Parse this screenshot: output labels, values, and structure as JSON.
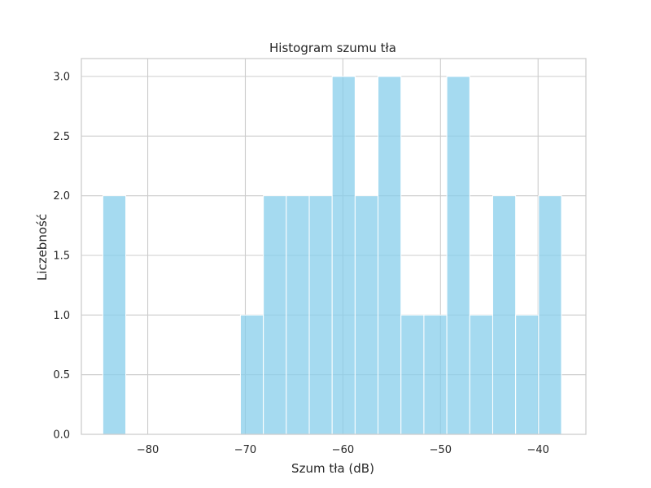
{
  "chart_data": {
    "type": "bar",
    "subtype": "histogram",
    "title": "Histogram szumu tła",
    "xlabel": "Szum tła (dB)",
    "ylabel": "Liczebność",
    "bar_color": "#87ceeb",
    "grid": true,
    "xlim": [
      -86.8,
      -35.1
    ],
    "ylim": [
      0,
      3.15
    ],
    "x_ticks": [
      -80,
      -70,
      -60,
      -50,
      -40
    ],
    "x_tick_labels": [
      "−80",
      "−70",
      "−60",
      "−50",
      "−40"
    ],
    "y_ticks": [
      0,
      0.5,
      1,
      1.5,
      2,
      2.5,
      3
    ],
    "y_tick_labels": [
      "0.0",
      "0.5",
      "1.0",
      "1.5",
      "2.0",
      "2.5",
      "3.0"
    ],
    "bins": [
      {
        "x0": -84.6,
        "x1": -82.25,
        "count": 2
      },
      {
        "x0": -82.25,
        "x1": -79.9,
        "count": 0
      },
      {
        "x0": -79.9,
        "x1": -77.55,
        "count": 0
      },
      {
        "x0": -77.55,
        "x1": -75.2,
        "count": 0
      },
      {
        "x0": -75.2,
        "x1": -72.85,
        "count": 0
      },
      {
        "x0": -72.85,
        "x1": -70.5,
        "count": 0
      },
      {
        "x0": -70.5,
        "x1": -68.15,
        "count": 1
      },
      {
        "x0": -68.15,
        "x1": -65.8,
        "count": 2
      },
      {
        "x0": -65.8,
        "x1": -63.45,
        "count": 2
      },
      {
        "x0": -63.45,
        "x1": -61.1,
        "count": 2
      },
      {
        "x0": -61.1,
        "x1": -58.75,
        "count": 3
      },
      {
        "x0": -58.75,
        "x1": -56.4,
        "count": 2
      },
      {
        "x0": -56.4,
        "x1": -54.05,
        "count": 3
      },
      {
        "x0": -54.05,
        "x1": -51.7,
        "count": 1
      },
      {
        "x0": -51.7,
        "x1": -49.35,
        "count": 1
      },
      {
        "x0": -49.35,
        "x1": -47.0,
        "count": 3
      },
      {
        "x0": -47.0,
        "x1": -44.65,
        "count": 1
      },
      {
        "x0": -44.65,
        "x1": -42.3,
        "count": 2
      },
      {
        "x0": -42.3,
        "x1": -39.95,
        "count": 1
      },
      {
        "x0": -39.95,
        "x1": -37.6,
        "count": 2
      }
    ]
  }
}
